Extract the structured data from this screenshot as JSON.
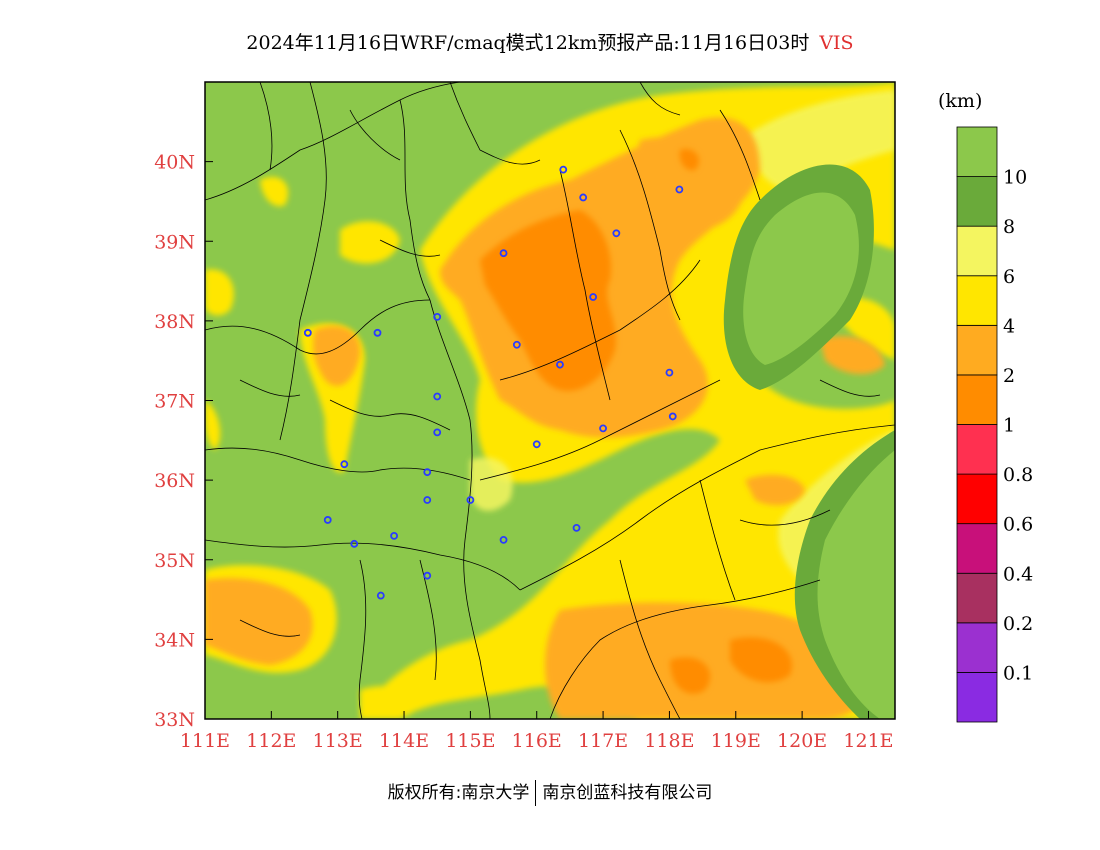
{
  "title": {
    "main": "2024年11月16日WRF/cmaq模式12km预报产品:11月16日03时",
    "variable": "VIS"
  },
  "colorbar": {
    "unit": "(km)",
    "colors": [
      "#8a2be2",
      "#9b30d0",
      "#a83060",
      "#c8107a",
      "#ff0000",
      "#ff3050",
      "#ff8c00",
      "#ffab20",
      "#ffe600",
      "#f4f560",
      "#6aaa3a",
      "#8cc84b"
    ],
    "labels": [
      "0.1",
      "0.2",
      "0.4",
      "0.6",
      "0.8",
      "1",
      "2",
      "4",
      "6",
      "8",
      "10"
    ]
  },
  "map": {
    "lat_range": [
      33,
      41
    ],
    "lon_range": [
      111,
      121.4
    ],
    "lat_ticks": [
      "33N",
      "34N",
      "35N",
      "36N",
      "37N",
      "38N",
      "39N",
      "40N"
    ],
    "lon_ticks": [
      "111E",
      "112E",
      "113E",
      "114E",
      "115E",
      "116E",
      "117E",
      "118E",
      "119E",
      "120E",
      "121E"
    ],
    "background": "#8cc84b",
    "sea": "#6aaa3a",
    "stations": [
      [
        116.4,
        39.9
      ],
      [
        116.7,
        39.55
      ],
      [
        117.2,
        39.1
      ],
      [
        118.15,
        39.65
      ],
      [
        115.5,
        38.85
      ],
      [
        116.85,
        38.3
      ],
      [
        114.5,
        38.05
      ],
      [
        112.55,
        37.85
      ],
      [
        113.6,
        37.85
      ],
      [
        115.7,
        37.7
      ],
      [
        116.35,
        37.45
      ],
      [
        118.0,
        37.35
      ],
      [
        114.5,
        37.05
      ],
      [
        114.5,
        36.6
      ],
      [
        117.0,
        36.65
      ],
      [
        118.05,
        36.8
      ],
      [
        116.0,
        36.45
      ],
      [
        113.1,
        36.2
      ],
      [
        114.35,
        36.1
      ],
      [
        114.35,
        35.75
      ],
      [
        115.0,
        35.75
      ],
      [
        112.85,
        35.5
      ],
      [
        113.25,
        35.2
      ],
      [
        113.85,
        35.3
      ],
      [
        115.5,
        35.25
      ],
      [
        116.6,
        35.4
      ],
      [
        114.35,
        34.8
      ],
      [
        113.65,
        34.55
      ]
    ]
  },
  "footer": {
    "left": "版权所有:南京大学",
    "right": "南京创蓝科技有限公司"
  }
}
